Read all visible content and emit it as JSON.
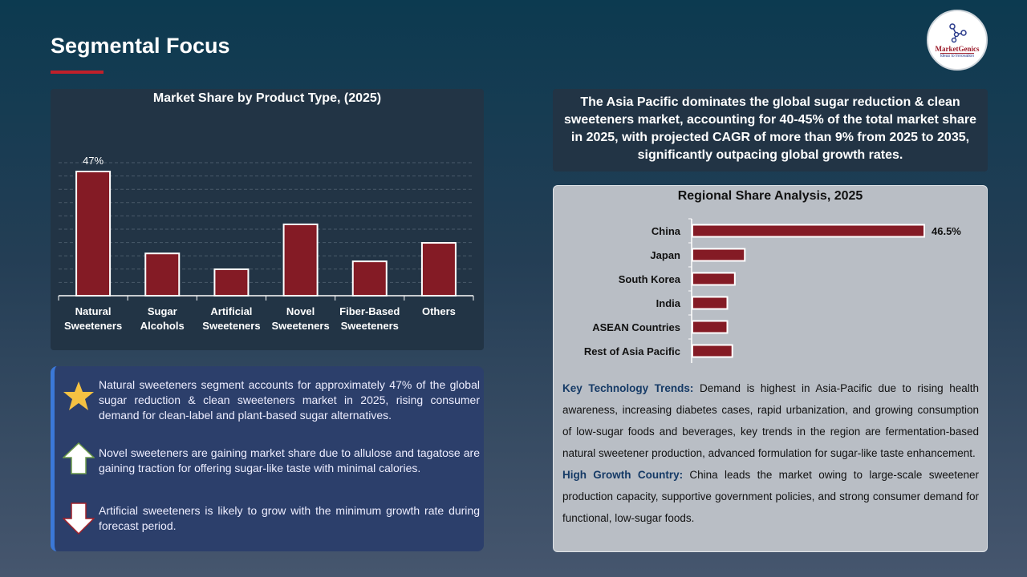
{
  "header": {
    "title": "Segmental Focus",
    "logo": {
      "brand": "MarketGenics",
      "tagline": "Ideas to Innovation"
    }
  },
  "colors": {
    "bar": "#841b25",
    "accent": "#c0202a",
    "bullet_border": "#3b78d8"
  },
  "chart_data": [
    {
      "type": "bar",
      "title": "Market Share by Product Type, (2025)",
      "categories": [
        "Natural Sweeteners",
        "Sugar Alcohols",
        "Artificial Sweeteners",
        "Novel Sweeteners",
        "Fiber-Based Sweeteners",
        "Others"
      ],
      "category_lines": [
        [
          "Natural",
          "Sweeteners"
        ],
        [
          "Sugar",
          "Alcohols"
        ],
        [
          "Artificial",
          "Sweeteners"
        ],
        [
          "Novel",
          "Sweeteners"
        ],
        [
          "Fiber-Based",
          "Sweeteners"
        ],
        [
          "Others"
        ]
      ],
      "values": [
        47,
        16,
        10,
        27,
        13,
        20
      ],
      "data_labels": [
        "47%",
        "",
        "",
        "",
        "",
        ""
      ],
      "grid": true,
      "unit": "%"
    },
    {
      "type": "bar",
      "orientation": "horizontal",
      "title": "Regional Share Analysis, 2025",
      "categories": [
        "China",
        "Japan",
        "South Korea",
        "India",
        "ASEAN Countries",
        "Rest of Asia Pacific"
      ],
      "values": [
        46.5,
        10.5,
        8.5,
        7,
        7,
        8
      ],
      "data_labels": [
        "46.5%",
        "",
        "",
        "",
        "",
        ""
      ],
      "grid": false,
      "unit": "%"
    }
  ],
  "bullets": [
    {
      "icon": "star-icon",
      "text": "Natural sweeteners segment accounts for approximately 47% of the global sugar reduction & clean sweeteners market in 2025, rising consumer demand for clean-label and plant-based sugar alternatives."
    },
    {
      "icon": "arrow-up-icon",
      "text": "Novel sweeteners are gaining market share due to allulose and tagatose are gaining traction for offering sugar-like taste with minimal calories."
    },
    {
      "icon": "arrow-down-icon",
      "text": "Artificial sweeteners is likely to grow with the minimum growth rate during forecast period."
    }
  ],
  "callout": "The Asia Pacific dominates the global sugar reduction & clean sweeteners market, accounting for 40-45% of the total market share in 2025, with projected CAGR of more than 9% from 2025 to 2035, significantly outpacing global growth rates.",
  "trends": {
    "tech_label": "Key Technology Trends:",
    "tech_text": " Demand is highest in Asia-Pacific due to rising health awareness, increasing diabetes cases, rapid urbanization, and growing consumption of low-sugar foods and beverages, key trends in the region are fermentation-based natural sweetener production, advanced formulation for sugar-like taste enhancement.",
    "growth_label": "High Growth Country:",
    "growth_text": " China leads the market owing to large-scale sweetener production capacity, supportive government policies, and strong consumer demand for functional, low-sugar foods."
  }
}
